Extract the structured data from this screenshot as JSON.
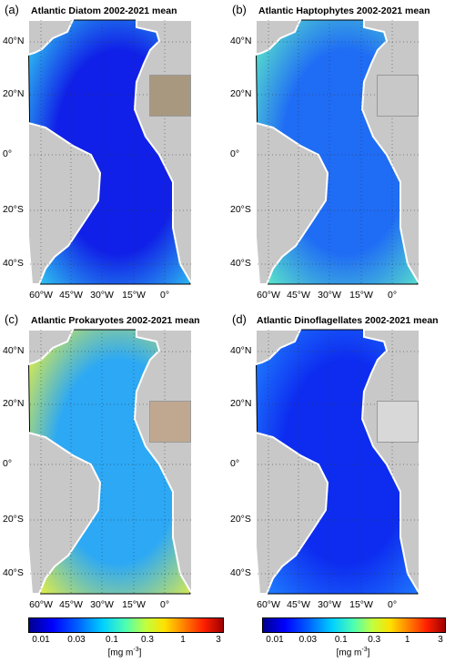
{
  "panels": [
    {
      "letter": "(a)",
      "title": "Atlantic Diatom 2002-2021 mean",
      "ocean_color": "#1020e8",
      "edge_color": "#30c8f0",
      "inset_color": "#a89880"
    },
    {
      "letter": "(b)",
      "title": "Atlantic Haptophytes 2002-2021 mean",
      "ocean_color": "#1f6cf5",
      "edge_color": "#5ce8c8",
      "inset_color": "#c8c8c8"
    },
    {
      "letter": "(c)",
      "title": "Atlantic Prokaryotes 2002-2021 mean",
      "ocean_color": "#2ca8f5",
      "edge_color": "#e8f040",
      "inset_color": "#c0a890"
    },
    {
      "letter": "(d)",
      "title": "Atlantic Dinoflagellates 2002-2021 mean",
      "ocean_color": "#0d2cf0",
      "edge_color": "#2080ff",
      "inset_color": "#d8d8d8"
    }
  ],
  "lat_labels": [
    "40°N",
    "20°N",
    "0°",
    "20°S",
    "40°S"
  ],
  "lon_labels": [
    "60°W",
    "45°W",
    "30°W",
    "15°W",
    "0°"
  ],
  "colorbar": {
    "ticks": [
      "0.01",
      "0.03",
      "0.1",
      "0.3",
      "1",
      "3"
    ],
    "unit": "[mg m",
    "unit_sup": "-3",
    "unit_end": "]"
  },
  "colors": {
    "land": "#c8c8c8",
    "coast": "#ffffff"
  }
}
